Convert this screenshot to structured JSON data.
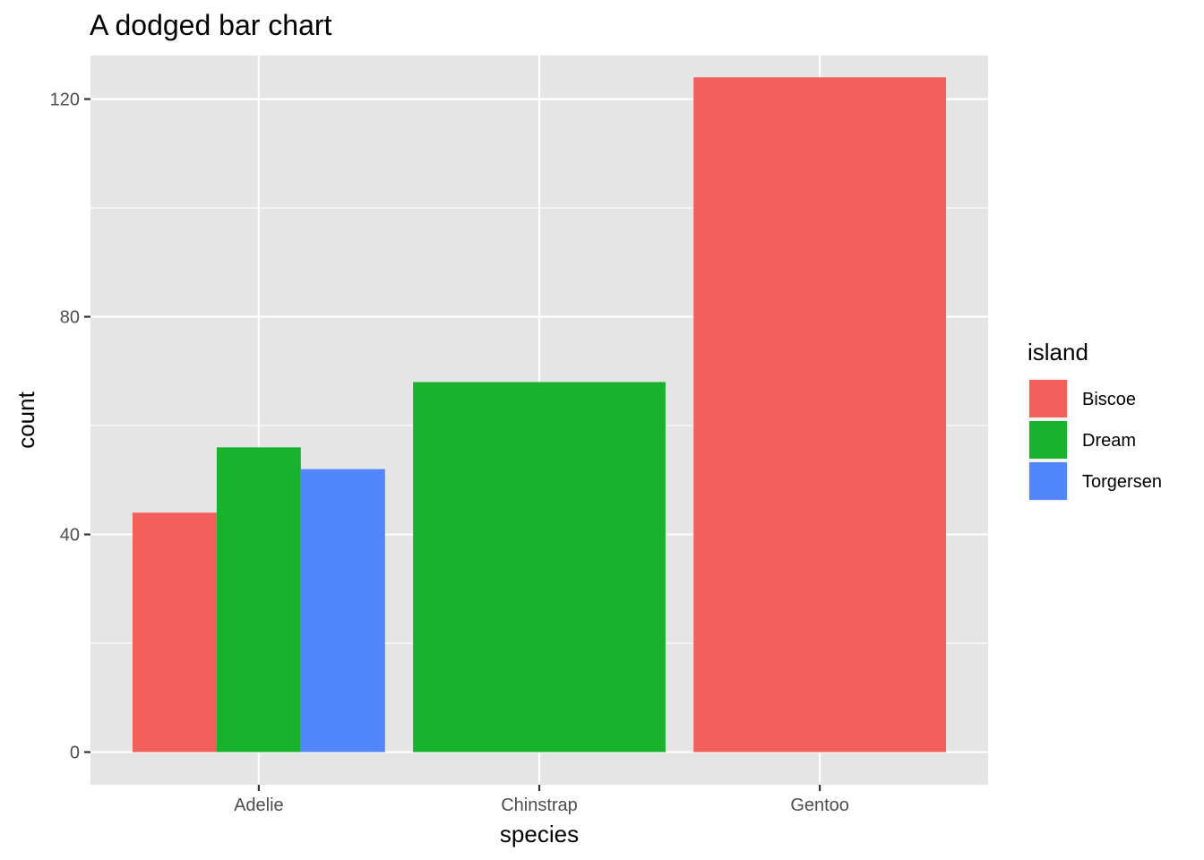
{
  "chart_data": {
    "type": "bar",
    "title": "A dodged bar chart",
    "xlabel": "species",
    "ylabel": "count",
    "categories": [
      "Adelie",
      "Chinstrap",
      "Gentoo"
    ],
    "ylim": [
      -6,
      128
    ],
    "yticks": [
      0,
      40,
      80,
      120
    ],
    "grid": true,
    "legend": {
      "title": "island",
      "placement": "right",
      "entries": [
        {
          "label": "Biscoe",
          "color": "#F35F5B"
        },
        {
          "label": "Dream",
          "color": "#19B22E"
        },
        {
          "label": "Torgersen",
          "color": "#5186FE"
        }
      ]
    },
    "bars": [
      {
        "category": "Adelie",
        "island": "Biscoe",
        "value": 44,
        "color": "#F35F5B",
        "slot": 0,
        "slots": 3
      },
      {
        "category": "Adelie",
        "island": "Dream",
        "value": 56,
        "color": "#19B22E",
        "slot": 1,
        "slots": 3
      },
      {
        "category": "Adelie",
        "island": "Torgersen",
        "value": 52,
        "color": "#5186FE",
        "slot": 2,
        "slots": 3
      },
      {
        "category": "Chinstrap",
        "island": "Dream",
        "value": 68,
        "color": "#19B22E",
        "slot": 0,
        "slots": 1
      },
      {
        "category": "Gentoo",
        "island": "Biscoe",
        "value": 124,
        "color": "#F35F5B",
        "slot": 0,
        "slots": 1
      }
    ],
    "panel_color": "#E5E5E5",
    "grid_color": "#FFFFFF",
    "tick_color": "#333333"
  }
}
